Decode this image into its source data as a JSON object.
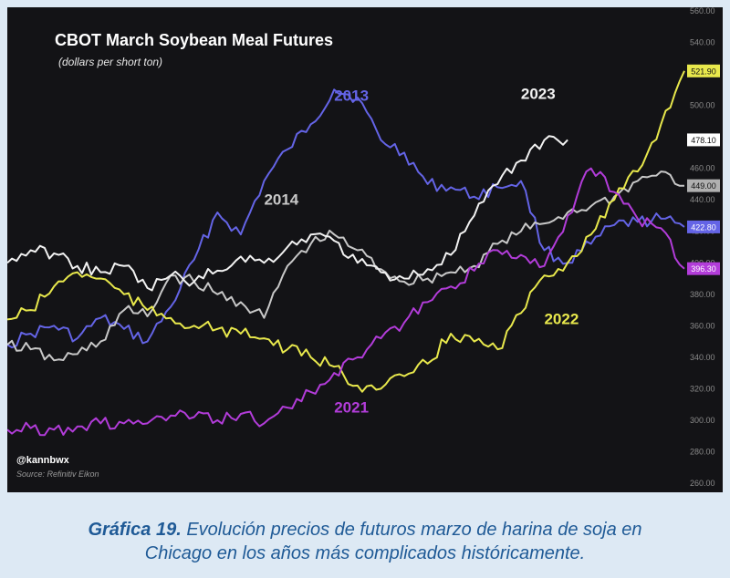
{
  "caption": {
    "lead": "Gráfica 19.",
    "line1": "Evolución precios de futuros marzo de harina de soja en",
    "line2": "Chicago en los años más complicados históricamente."
  },
  "chart_data": {
    "type": "line",
    "title": "CBOT March Soybean Meal Futures",
    "subtitle": "(dollars per short ton)",
    "watermark": "@kannbwx",
    "source": "Source: Refinitiv Eikon",
    "ylim": [
      260,
      560
    ],
    "y_ticks": [
      260,
      280,
      300,
      320,
      340,
      360,
      380,
      400,
      420,
      440,
      460,
      480,
      500,
      520,
      540,
      560
    ],
    "y_tick_labels": [
      "260.00",
      "280.00",
      "300.00",
      "320.00",
      "340.00",
      "360.00",
      "380.00",
      "400.00",
      "420.00",
      "440.00",
      "460.00",
      "480.00",
      "500.00",
      "520.00",
      "540.00",
      "560.00"
    ],
    "grid": false,
    "x_points": 30,
    "series": [
      {
        "name": "2013",
        "color": "#6464e6",
        "end_label": "422.80",
        "label_x": 14,
        "label_y": 503,
        "values": [
          348,
          355,
          360,
          352,
          365,
          358,
          350,
          372,
          402,
          432,
          418,
          452,
          472,
          488,
          510,
          505,
          478,
          470,
          450,
          448,
          442,
          448,
          452,
          408,
          400,
          412,
          424,
          426,
          428,
          422.8
        ]
      },
      {
        "name": "2014",
        "color": "#c8c8c8",
        "end_label": "449.00",
        "label_x": 11,
        "label_y": 437,
        "values": [
          348,
          345,
          338,
          342,
          350,
          370,
          366,
          392,
          388,
          380,
          375,
          365,
          398,
          412,
          418,
          408,
          396,
          388,
          390,
          394,
          398,
          412,
          420,
          425,
          432,
          436,
          442,
          452,
          458,
          449
        ]
      },
      {
        "name": "2023",
        "color": "#f2f2f2",
        "end_label": "478.10",
        "label_x": 22,
        "label_y": 504,
        "values": [
          400,
          408,
          406,
          398,
          394,
          398,
          384,
          392,
          388,
          395,
          404,
          400,
          410,
          418,
          414,
          400,
          394,
          390,
          396,
          405,
          430,
          450,
          465,
          478,
          478.1
        ]
      },
      {
        "name": "2022",
        "color": "#e8e84c",
        "end_label": "521.90",
        "label_x": 23,
        "label_y": 361,
        "values": [
          364,
          370,
          385,
          394,
          390,
          380,
          370,
          365,
          360,
          358,
          355,
          352,
          345,
          340,
          334,
          322,
          320,
          328,
          336,
          355,
          350,
          345,
          368,
          392,
          400,
          418,
          440,
          458,
          488,
          521.9
        ]
      },
      {
        "name": "2021",
        "color": "#b23cd9",
        "end_label": "396.30",
        "label_x": 14,
        "label_y": 305,
        "values": [
          294,
          295,
          294,
          296,
          298,
          298,
          298,
          303,
          302,
          300,
          304,
          298,
          308,
          318,
          330,
          340,
          352,
          362,
          375,
          385,
          395,
          408,
          405,
          398,
          430,
          460,
          445,
          428,
          422,
          396.3
        ]
      }
    ]
  }
}
